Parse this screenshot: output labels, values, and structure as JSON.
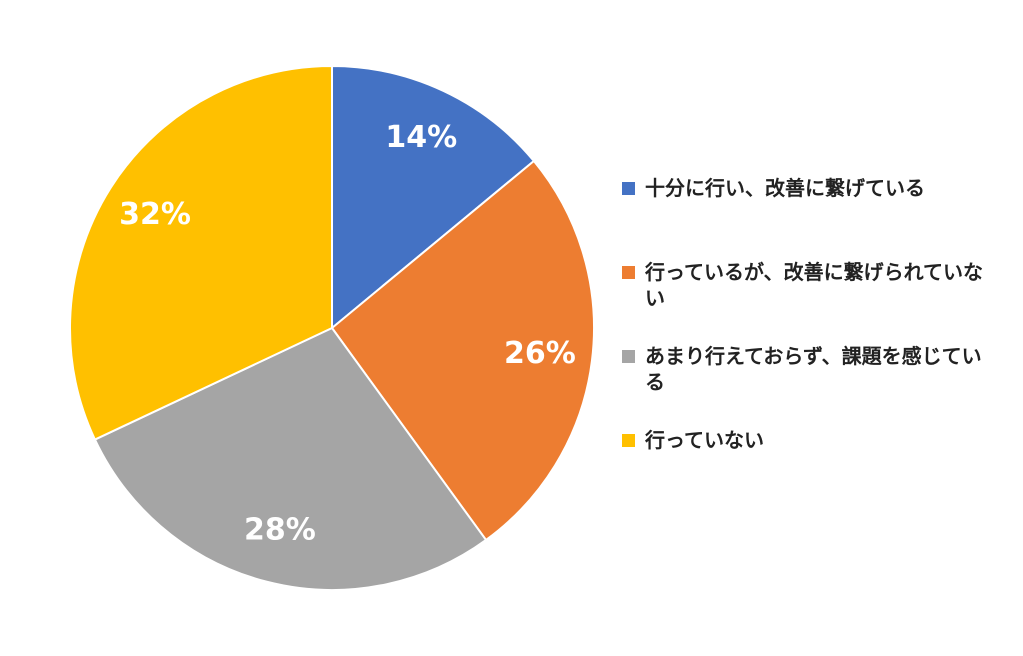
{
  "chart_data": {
    "type": "pie",
    "categories": [
      "十分に行い、改善に繋げている",
      "行っているが、改善に繋げられていない",
      "あまり行えておらず、課題を感じている",
      "行っていない"
    ],
    "values": [
      14,
      26,
      28,
      32
    ],
    "value_labels": [
      "14%",
      "26%",
      "28%",
      "32%"
    ],
    "colors": [
      "#4472c4",
      "#ed7d31",
      "#a5a5a5",
      "#ffc000"
    ],
    "legend": "right"
  }
}
